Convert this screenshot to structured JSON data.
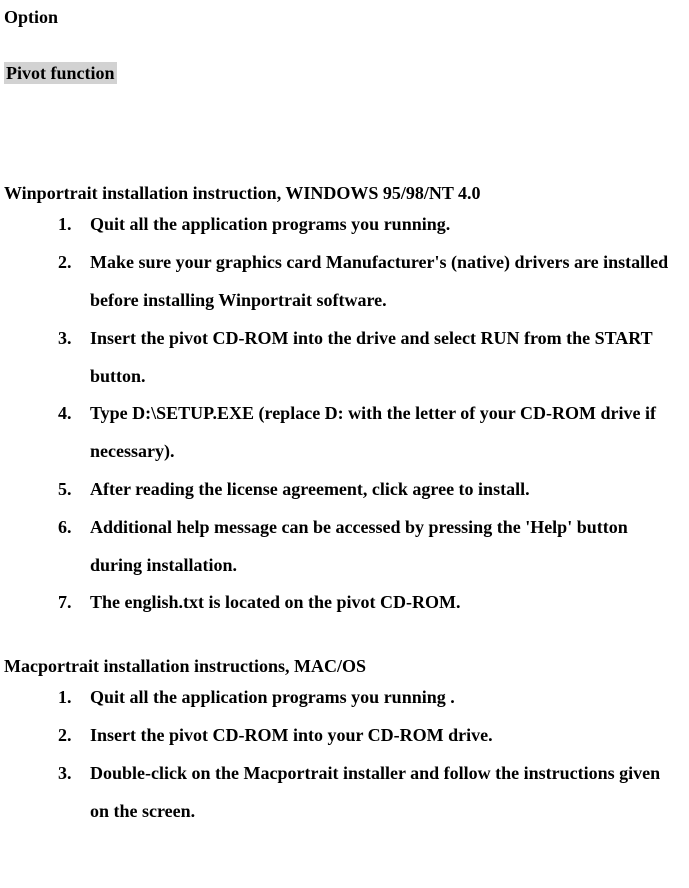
{
  "title": "Option",
  "subtitle": "Pivot function",
  "subtitle_bg": "#d2d2d2",
  "section_win": {
    "heading": "Winportrait installation instruction, WINDOWS 95/98/NT 4.0",
    "steps": [
      "Quit all the application programs you running.",
      "Make sure your graphics card Manufacturer's (native) drivers are installed before installing Winportrait software.",
      "Insert the pivot CD-ROM into the drive and select RUN from the START button.",
      "Type D:\\SETUP.EXE (replace D: with the letter of your CD-ROM drive if necessary).",
      "After reading the license agreement, click agree to install.",
      "Additional help message can be accessed by pressing the 'Help' button during installation.",
      "The english.txt is located on the pivot CD-ROM."
    ]
  },
  "section_mac": {
    "heading": "Macportrait installation instructions, MAC/OS",
    "steps": [
      "Quit all the application programs you running .",
      "Insert the pivot CD-ROM into your CD-ROM drive.",
      "Double-click on the Macportrait installer and follow the instructions given on the screen."
    ]
  }
}
